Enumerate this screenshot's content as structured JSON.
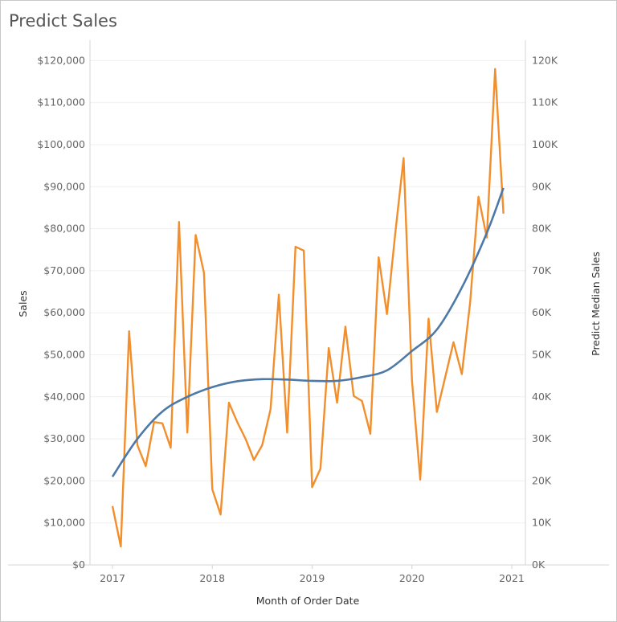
{
  "title": "Predict Sales",
  "chart_data": {
    "type": "line",
    "title": "Predict Sales",
    "xlabel": "Month of Order Date",
    "ylabel": "Sales",
    "y2label": "Predict Median Sales",
    "x_tick_labels": [
      "2017",
      "2018",
      "2019",
      "2020",
      "2021"
    ],
    "y_tick_labels": [
      "$0",
      "$10,000",
      "$20,000",
      "$30,000",
      "$40,000",
      "$50,000",
      "$60,000",
      "$70,000",
      "$80,000",
      "$90,000",
      "$100,000",
      "$110,000",
      "$120,000"
    ],
    "y2_tick_labels": [
      "0K",
      "10K",
      "20K",
      "30K",
      "40K",
      "50K",
      "60K",
      "70K",
      "80K",
      "90K",
      "100K",
      "110K",
      "120K"
    ],
    "ylim": [
      0,
      120000
    ],
    "y2lim": [
      0,
      120000
    ],
    "grid": "horizontal",
    "x_start": "2017-01",
    "x_end_tick": "2021-01",
    "series": [
      {
        "axis": "left",
        "color": "#f28e2b",
        "months": [
          "2017-01",
          "2017-02",
          "2017-03",
          "2017-04",
          "2017-05",
          "2017-06",
          "2017-07",
          "2017-08",
          "2017-09",
          "2017-10",
          "2017-11",
          "2017-12",
          "2018-01",
          "2018-02",
          "2018-03",
          "2018-04",
          "2018-05",
          "2018-06",
          "2018-07",
          "2018-08",
          "2018-09",
          "2018-10",
          "2018-11",
          "2018-12",
          "2019-01",
          "2019-02",
          "2019-03",
          "2019-04",
          "2019-05",
          "2019-06",
          "2019-07",
          "2019-08",
          "2019-09",
          "2019-10",
          "2019-11",
          "2019-12",
          "2020-01",
          "2020-02",
          "2020-03",
          "2020-04",
          "2020-05",
          "2020-06",
          "2020-07",
          "2020-08",
          "2020-09",
          "2020-10",
          "2020-11",
          "2020-12"
        ],
        "values": [
          14000,
          4400,
          55600,
          28500,
          23500,
          34000,
          33700,
          27900,
          81600,
          31500,
          78500,
          69500,
          18000,
          12000,
          38600,
          34000,
          30000,
          25000,
          28500,
          37000,
          64300,
          31500,
          75700,
          74800,
          18500,
          22900,
          51600,
          38600,
          56700,
          40200,
          39000,
          31200,
          73200,
          59700,
          79000,
          96800,
          44000,
          20300,
          58600,
          36400,
          44700,
          53000,
          45400,
          62500,
          87600,
          77900,
          118000,
          83600
        ]
      },
      {
        "axis": "right",
        "color": "#4e79a7",
        "months": [
          "2017-01",
          "2017-04",
          "2017-07",
          "2017-10",
          "2018-01",
          "2018-04",
          "2018-07",
          "2018-10",
          "2019-01",
          "2019-04",
          "2019-07",
          "2019-10",
          "2020-01",
          "2020-04",
          "2020-07",
          "2020-10",
          "2020-12"
        ],
        "values": [
          21000,
          30000,
          36500,
          40000,
          42300,
          43700,
          44200,
          44100,
          43800,
          43800,
          44700,
          46300,
          50900,
          56000,
          66000,
          79000,
          89700
        ]
      }
    ]
  }
}
